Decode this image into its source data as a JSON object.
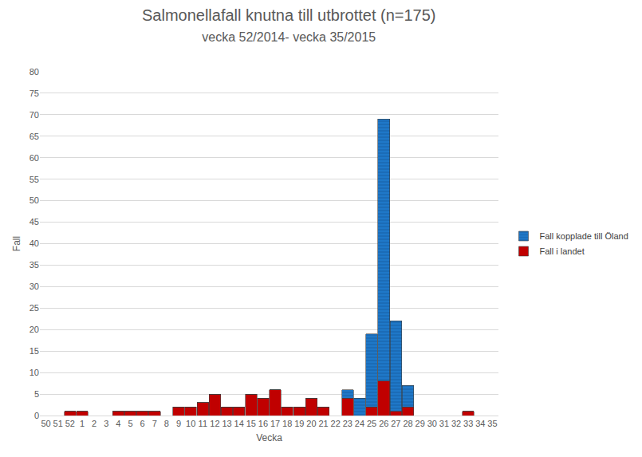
{
  "chart_data": {
    "type": "bar",
    "title": "Salmonellafall knutna till utbrottet (n=175)",
    "subtitle": "vecka 52/2014- vecka 35/2015",
    "x_label": "Vecka",
    "y_label": "Fall",
    "categories": [
      "50",
      "51",
      "52",
      "1",
      "2",
      "3",
      "4",
      "5",
      "6",
      "7",
      "8",
      "9",
      "10",
      "11",
      "12",
      "13",
      "14",
      "15",
      "16",
      "17",
      "18",
      "19",
      "20",
      "21",
      "22",
      "23",
      "24",
      "25",
      "26",
      "27",
      "28",
      "29",
      "30",
      "31",
      "32",
      "33",
      "34",
      "35"
    ],
    "series": [
      {
        "name": "Fall i landet",
        "color": "#c00000",
        "values": [
          0,
          0,
          1,
          1,
          0,
          0,
          1,
          1,
          1,
          1,
          0,
          2,
          2,
          3,
          5,
          2,
          2,
          5,
          4,
          6,
          2,
          2,
          4,
          2,
          0,
          4,
          0,
          2,
          8,
          1,
          2,
          0,
          0,
          0,
          0,
          1,
          0,
          0
        ]
      },
      {
        "name": "Fall kopplade till Öland",
        "color": "#1f78c8",
        "values": [
          0,
          0,
          0,
          0,
          0,
          0,
          0,
          0,
          0,
          0,
          0,
          0,
          0,
          0,
          0,
          0,
          0,
          0,
          0,
          0,
          0,
          0,
          0,
          0,
          0,
          2,
          4,
          17,
          61,
          21,
          5,
          0,
          0,
          0,
          0,
          0,
          0,
          0
        ]
      }
    ],
    "stacked": true,
    "ylim": [
      0,
      80
    ],
    "yticks": [
      0,
      5,
      10,
      15,
      20,
      25,
      30,
      35,
      40,
      45,
      50,
      55,
      60,
      65,
      70,
      75,
      80
    ],
    "grid": true,
    "legend": "right"
  }
}
